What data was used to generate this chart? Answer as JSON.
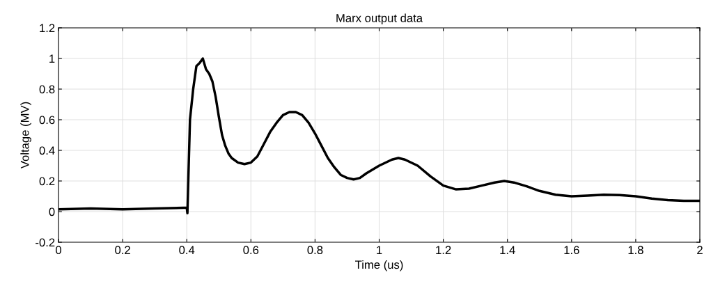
{
  "chart_data": {
    "type": "line",
    "title": "Marx output data",
    "xlabel": "Time (us)",
    "ylabel": "Voltage (MV)",
    "series": [
      {
        "color": "#000000",
        "x": [
          0,
          0.1,
          0.2,
          0.3,
          0.39,
          0.4,
          0.402,
          0.41,
          0.42,
          0.43,
          0.44,
          0.45,
          0.46,
          0.47,
          0.48,
          0.49,
          0.5,
          0.51,
          0.52,
          0.53,
          0.54,
          0.56,
          0.58,
          0.6,
          0.62,
          0.64,
          0.66,
          0.68,
          0.7,
          0.72,
          0.74,
          0.76,
          0.78,
          0.8,
          0.82,
          0.84,
          0.86,
          0.88,
          0.9,
          0.92,
          0.94,
          0.96,
          1.0,
          1.04,
          1.06,
          1.08,
          1.12,
          1.16,
          1.2,
          1.24,
          1.28,
          1.32,
          1.36,
          1.39,
          1.42,
          1.46,
          1.5,
          1.55,
          1.6,
          1.65,
          1.7,
          1.75,
          1.8,
          1.85,
          1.9,
          1.95,
          2.0
        ],
        "values": [
          0.015,
          0.02,
          0.015,
          0.02,
          0.025,
          0.025,
          -0.01,
          0.6,
          0.8,
          0.95,
          0.97,
          1.0,
          0.93,
          0.9,
          0.85,
          0.75,
          0.62,
          0.5,
          0.43,
          0.38,
          0.35,
          0.32,
          0.31,
          0.32,
          0.36,
          0.44,
          0.52,
          0.58,
          0.63,
          0.65,
          0.65,
          0.63,
          0.58,
          0.51,
          0.43,
          0.35,
          0.29,
          0.24,
          0.22,
          0.21,
          0.22,
          0.25,
          0.3,
          0.34,
          0.35,
          0.34,
          0.3,
          0.23,
          0.17,
          0.145,
          0.15,
          0.17,
          0.19,
          0.2,
          0.19,
          0.165,
          0.135,
          0.11,
          0.1,
          0.105,
          0.11,
          0.108,
          0.1,
          0.085,
          0.075,
          0.07,
          0.07
        ]
      }
    ],
    "xlim": [
      0,
      2
    ],
    "xticks": [
      0,
      0.2,
      0.4,
      0.6,
      0.8,
      1,
      1.2,
      1.4,
      1.6,
      1.8,
      2
    ],
    "ylim": [
      -0.2,
      1.2
    ],
    "yticks": [
      -0.2,
      0,
      0.2,
      0.4,
      0.6,
      0.8,
      1,
      1.2
    ],
    "grid": true,
    "line_style": "solid"
  }
}
